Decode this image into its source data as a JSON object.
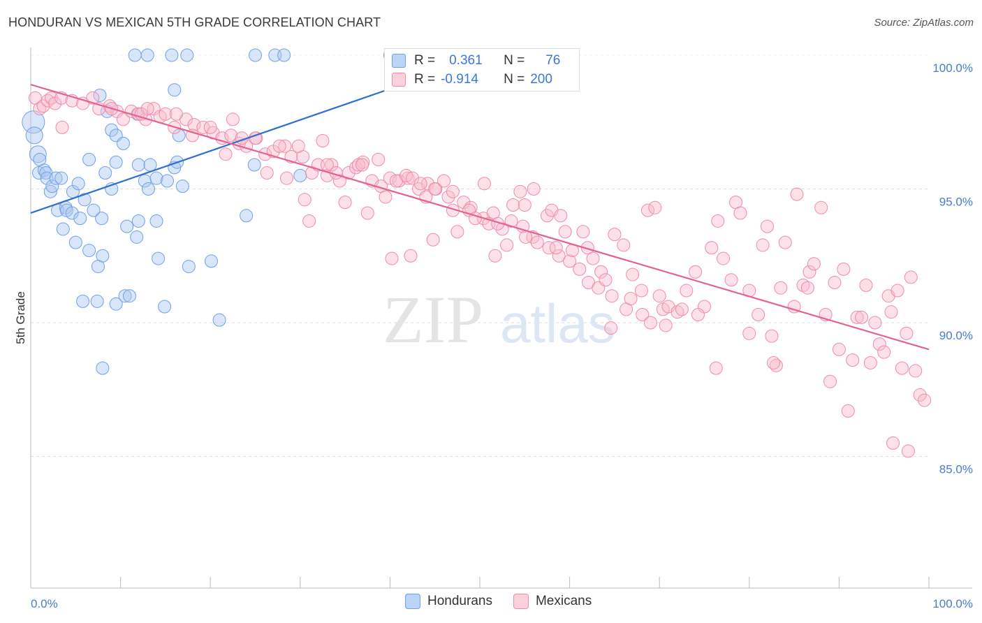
{
  "header": {
    "title": "HONDURAN VS MEXICAN 5TH GRADE CORRELATION CHART",
    "source": "Source: ZipAtlas.com"
  },
  "watermark": {
    "part1": "ZIP",
    "part2": "atlas"
  },
  "legend": {
    "rows": [
      {
        "r_label": "R =",
        "r_value": "0.361",
        "n_label": "N =",
        "n_value": "76",
        "color": "#6fa0e8"
      },
      {
        "r_label": "R =",
        "r_value": "-0.914",
        "n_label": "N =",
        "n_value": "200",
        "color": "#f08aaa"
      }
    ]
  },
  "bottom_legend": {
    "hondurans": "Hondurans",
    "mexicans": "Mexicans"
  },
  "chart_data": {
    "type": "scatter",
    "ylabel": "5th Grade",
    "x_tick_labels": {
      "left": "0.0%",
      "right": "100.0%"
    },
    "y_tick_labels": [
      "100.0%",
      "95.0%",
      "90.0%",
      "85.0%"
    ],
    "y_ticks": [
      100,
      95,
      90,
      85
    ],
    "xlim": [
      0,
      100
    ],
    "ylim": [
      80.5,
      100.5
    ],
    "grid": true,
    "series": [
      {
        "name": "Hondurans",
        "color": "#6fa0e8",
        "trend": {
          "x": [
            0,
            50
          ],
          "y": [
            94.1,
            99.9
          ]
        },
        "points": [
          [
            0.3,
            97.5
          ],
          [
            0.4,
            97.0
          ],
          [
            0.8,
            96.3
          ],
          [
            1.0,
            96.1
          ],
          [
            0.9,
            95.6
          ],
          [
            1.5,
            95.7
          ],
          [
            1.7,
            95.6
          ],
          [
            1.8,
            95.4
          ],
          [
            2.2,
            94.9
          ],
          [
            2.4,
            95.1
          ],
          [
            2.8,
            95.4
          ],
          [
            3.4,
            95.4
          ],
          [
            3.0,
            94.2
          ],
          [
            3.9,
            94.3
          ],
          [
            4.0,
            94.2
          ],
          [
            4.7,
            94.9
          ],
          [
            4.6,
            94.1
          ],
          [
            5.3,
            95.2
          ],
          [
            5.5,
            93.9
          ],
          [
            6.0,
            94.6
          ],
          [
            6.5,
            96.1
          ],
          [
            7.0,
            94.2
          ],
          [
            7.9,
            93.9
          ],
          [
            8.3,
            95.6
          ],
          [
            9.0,
            95.0
          ],
          [
            9.5,
            96.0
          ],
          [
            8.5,
            97.9
          ],
          [
            9.0,
            97.2
          ],
          [
            9.5,
            97.0
          ],
          [
            7.7,
            98.5
          ],
          [
            11.9,
            97.8
          ],
          [
            12.0,
            95.9
          ],
          [
            12.7,
            95.3
          ],
          [
            13.3,
            95.9
          ],
          [
            13.1,
            95.0
          ],
          [
            14.0,
            95.4
          ],
          [
            15.2,
            95.3
          ],
          [
            16.0,
            95.8
          ],
          [
            16.3,
            96.0
          ],
          [
            16.9,
            95.1
          ],
          [
            16.5,
            97.0
          ],
          [
            16.0,
            98.7
          ],
          [
            11.8,
            93.2
          ],
          [
            14.0,
            93.8
          ],
          [
            14.2,
            92.4
          ],
          [
            10.7,
            93.6
          ],
          [
            12.0,
            93.8
          ],
          [
            8.0,
            92.5
          ],
          [
            7.5,
            92.1
          ],
          [
            6.5,
            92.7
          ],
          [
            5.0,
            93.0
          ],
          [
            3.6,
            93.5
          ],
          [
            9.5,
            90.7
          ],
          [
            10.5,
            91.0
          ],
          [
            11.0,
            91.0
          ],
          [
            14.9,
            90.6
          ],
          [
            5.8,
            90.8
          ],
          [
            7.4,
            90.8
          ],
          [
            8.0,
            88.3
          ],
          [
            17.6,
            92.1
          ],
          [
            20.1,
            92.3
          ],
          [
            21.0,
            90.1
          ],
          [
            24.0,
            94.0
          ],
          [
            24.9,
            95.9
          ],
          [
            30.0,
            95.5
          ],
          [
            11.6,
            100.0
          ],
          [
            13.0,
            100.0
          ],
          [
            15.7,
            100.0
          ],
          [
            17.4,
            100.0
          ],
          [
            25.0,
            100.0
          ],
          [
            27.2,
            100.0
          ],
          [
            28.2,
            100.0
          ],
          [
            40.0,
            100.0
          ],
          [
            40.6,
            100.0
          ],
          [
            49.5,
            100.0
          ],
          [
            10.3,
            96.7
          ]
        ]
      },
      {
        "name": "Mexicans",
        "color": "#f08aaa",
        "trend": {
          "x": [
            0,
            100
          ],
          "y": [
            98.9,
            89.0
          ]
        },
        "points": [
          [
            0.5,
            98.4
          ],
          [
            1.0,
            98.0
          ],
          [
            1.4,
            98.1
          ],
          [
            1.9,
            98.3
          ],
          [
            2.3,
            98.4
          ],
          [
            2.7,
            98.2
          ],
          [
            3.4,
            98.4
          ],
          [
            4.6,
            98.3
          ],
          [
            5.8,
            98.2
          ],
          [
            6.9,
            98.4
          ],
          [
            7.6,
            98.0
          ],
          [
            8.8,
            98.1
          ],
          [
            9.6,
            97.9
          ],
          [
            10.3,
            97.6
          ],
          [
            11.2,
            97.9
          ],
          [
            12.0,
            97.8
          ],
          [
            12.8,
            97.6
          ],
          [
            13.7,
            98.0
          ],
          [
            14.4,
            97.7
          ],
          [
            15.0,
            97.8
          ],
          [
            16.0,
            97.3
          ],
          [
            17.3,
            97.6
          ],
          [
            18.2,
            97.4
          ],
          [
            19.2,
            97.3
          ],
          [
            20.3,
            97.1
          ],
          [
            21.3,
            96.9
          ],
          [
            22.3,
            97.0
          ],
          [
            23.2,
            96.7
          ],
          [
            24.0,
            96.6
          ],
          [
            25.1,
            96.9
          ],
          [
            26.1,
            96.3
          ],
          [
            27.0,
            96.4
          ],
          [
            28.3,
            96.6
          ],
          [
            29.0,
            96.2
          ],
          [
            30.3,
            96.2
          ],
          [
            31.3,
            95.6
          ],
          [
            32.0,
            95.9
          ],
          [
            33.0,
            95.5
          ],
          [
            34.4,
            95.3
          ],
          [
            35.4,
            95.6
          ],
          [
            36.2,
            95.8
          ],
          [
            37.0,
            96.0
          ],
          [
            38.0,
            95.3
          ],
          [
            39.0,
            95.1
          ],
          [
            40.0,
            95.4
          ],
          [
            41.0,
            95.3
          ],
          [
            42.0,
            95.4
          ],
          [
            43.2,
            95.0
          ],
          [
            44.2,
            95.2
          ],
          [
            45.1,
            95.0
          ],
          [
            46.5,
            94.7
          ],
          [
            47.0,
            94.9
          ],
          [
            48.2,
            94.5
          ],
          [
            49.0,
            94.3
          ],
          [
            50.4,
            93.9
          ],
          [
            51.5,
            94.1
          ],
          [
            52.5,
            93.5
          ],
          [
            53.5,
            93.8
          ],
          [
            54.8,
            93.6
          ],
          [
            55.9,
            93.2
          ],
          [
            56.4,
            93.0
          ],
          [
            57.7,
            92.8
          ],
          [
            58.8,
            92.5
          ],
          [
            60.0,
            92.3
          ],
          [
            61.1,
            92.0
          ],
          [
            62.1,
            91.5
          ],
          [
            63.2,
            91.3
          ],
          [
            64.7,
            91.0
          ],
          [
            66.3,
            90.5
          ],
          [
            68.1,
            90.3
          ],
          [
            69.0,
            90.0
          ],
          [
            70.4,
            90.5
          ],
          [
            3.5,
            97.3
          ],
          [
            9.0,
            98.0
          ],
          [
            13.0,
            98.0
          ],
          [
            18.0,
            97.0
          ],
          [
            22.5,
            97.6
          ],
          [
            23.5,
            96.9
          ],
          [
            25.0,
            96.9
          ],
          [
            26.3,
            95.6
          ],
          [
            27.7,
            96.6
          ],
          [
            28.5,
            95.4
          ],
          [
            29.8,
            96.6
          ],
          [
            30.5,
            94.6
          ],
          [
            31.0,
            93.8
          ],
          [
            32.5,
            96.8
          ],
          [
            33.5,
            95.9
          ],
          [
            35.0,
            94.5
          ],
          [
            36.5,
            95.9
          ],
          [
            37.5,
            94.1
          ],
          [
            39.5,
            94.7
          ],
          [
            40.7,
            95.3
          ],
          [
            41.8,
            95.5
          ],
          [
            42.5,
            95.4
          ],
          [
            43.4,
            95.2
          ],
          [
            44.0,
            94.7
          ],
          [
            45.0,
            95.0
          ],
          [
            46.0,
            95.3
          ],
          [
            47.0,
            94.2
          ],
          [
            48.8,
            94.2
          ],
          [
            49.5,
            93.9
          ],
          [
            50.5,
            95.2
          ],
          [
            51.0,
            93.7
          ],
          [
            52.0,
            93.7
          ],
          [
            53.0,
            92.9
          ],
          [
            53.7,
            94.4
          ],
          [
            54.5,
            94.9
          ],
          [
            55.0,
            94.4
          ],
          [
            56.0,
            95.0
          ],
          [
            57.5,
            94.0
          ],
          [
            58.0,
            94.2
          ],
          [
            59.0,
            94.0
          ],
          [
            59.5,
            93.4
          ],
          [
            60.3,
            92.7
          ],
          [
            61.5,
            93.4
          ],
          [
            62.0,
            92.8
          ],
          [
            63.5,
            91.9
          ],
          [
            64.0,
            91.6
          ],
          [
            65.0,
            93.3
          ],
          [
            66.0,
            92.9
          ],
          [
            67.0,
            91.8
          ],
          [
            68.0,
            91.2
          ],
          [
            68.7,
            94.2
          ],
          [
            69.5,
            94.3
          ],
          [
            70.0,
            91.0
          ],
          [
            71.0,
            90.6
          ],
          [
            72.0,
            90.4
          ],
          [
            73.0,
            91.2
          ],
          [
            74.0,
            91.9
          ],
          [
            75.0,
            90.6
          ],
          [
            75.8,
            92.8
          ],
          [
            76.5,
            93.8
          ],
          [
            77.1,
            92.4
          ],
          [
            78.0,
            91.6
          ],
          [
            78.5,
            94.5
          ],
          [
            79.0,
            94.1
          ],
          [
            80.0,
            91.2
          ],
          [
            81.0,
            90.3
          ],
          [
            81.5,
            92.9
          ],
          [
            82.0,
            93.6
          ],
          [
            82.5,
            89.5
          ],
          [
            83.0,
            88.4
          ],
          [
            83.5,
            91.3
          ],
          [
            84.0,
            93.0
          ],
          [
            85.0,
            90.6
          ],
          [
            86.0,
            91.4
          ],
          [
            86.7,
            91.9
          ],
          [
            87.2,
            92.2
          ],
          [
            88.0,
            94.3
          ],
          [
            88.5,
            90.3
          ],
          [
            89.0,
            87.8
          ],
          [
            89.5,
            91.5
          ],
          [
            90.0,
            89.0
          ],
          [
            90.5,
            92.0
          ],
          [
            91.0,
            86.7
          ],
          [
            91.5,
            88.6
          ],
          [
            92.0,
            90.2
          ],
          [
            92.5,
            90.2
          ],
          [
            93.0,
            91.4
          ],
          [
            93.5,
            88.5
          ],
          [
            94.0,
            90.0
          ],
          [
            94.5,
            89.2
          ],
          [
            95.0,
            88.9
          ],
          [
            95.5,
            91.0
          ],
          [
            96.0,
            85.5
          ],
          [
            96.5,
            91.2
          ],
          [
            97.0,
            88.3
          ],
          [
            97.5,
            89.6
          ],
          [
            98.0,
            91.7
          ],
          [
            98.5,
            88.2
          ],
          [
            99.0,
            87.3
          ],
          [
            99.5,
            87.1
          ],
          [
            95.8,
            90.4
          ],
          [
            97.7,
            85.2
          ],
          [
            86.5,
            91.3
          ],
          [
            85.3,
            94.8
          ],
          [
            82.7,
            88.5
          ],
          [
            80.0,
            89.6
          ],
          [
            76.3,
            88.3
          ],
          [
            74.3,
            90.3
          ],
          [
            72.5,
            90.5
          ],
          [
            70.7,
            89.9
          ],
          [
            66.8,
            90.9
          ],
          [
            64.6,
            89.8
          ],
          [
            62.6,
            92.4
          ],
          [
            58.5,
            92.8
          ],
          [
            55.1,
            93.2
          ],
          [
            51.7,
            92.5
          ],
          [
            47.5,
            93.4
          ],
          [
            44.8,
            93.1
          ],
          [
            42.3,
            92.5
          ],
          [
            40.2,
            92.4
          ],
          [
            38.7,
            96.1
          ],
          [
            36.9,
            95.9
          ],
          [
            34.0,
            95.6
          ],
          [
            33.0,
            95.9
          ],
          [
            21.7,
            96.3
          ],
          [
            20.0,
            97.3
          ],
          [
            16.2,
            97.8
          ],
          [
            12.3,
            97.8
          ]
        ]
      }
    ]
  }
}
